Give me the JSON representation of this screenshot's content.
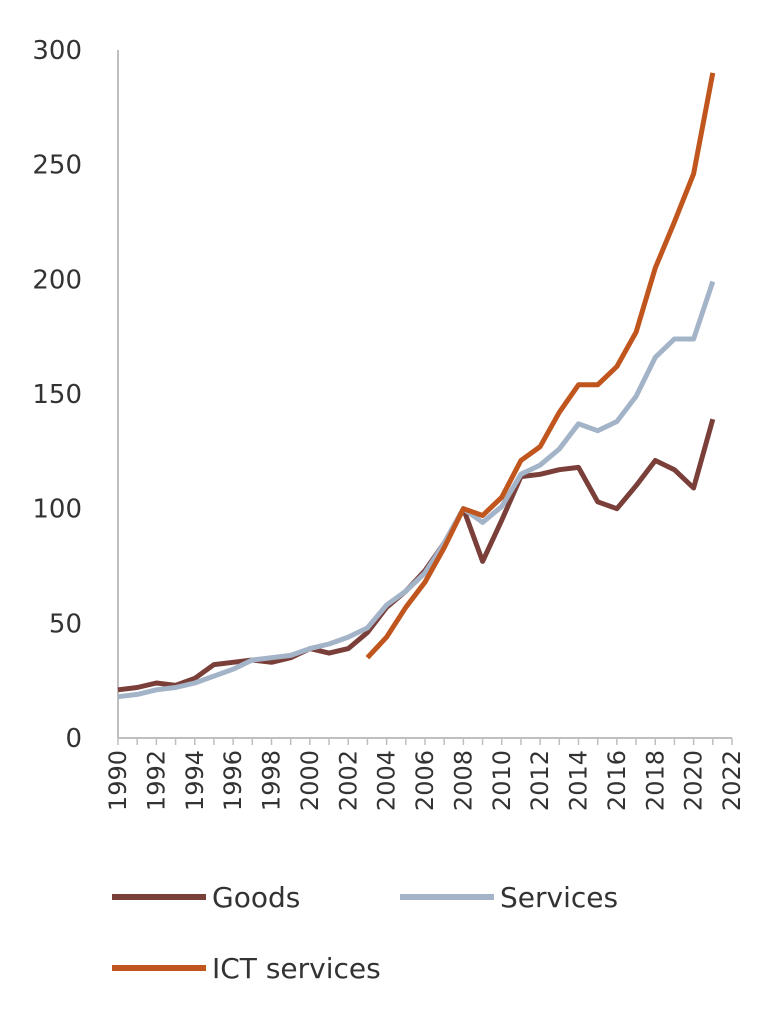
{
  "chart_data": {
    "type": "line",
    "title": "",
    "xlabel": "",
    "ylabel": "",
    "ylim": [
      0,
      300
    ],
    "y_ticks": [
      0,
      50,
      100,
      150,
      200,
      250,
      300
    ],
    "xlim": [
      1990,
      2022
    ],
    "x_ticks": [
      1990,
      1992,
      1994,
      1996,
      1998,
      2000,
      2002,
      2004,
      2006,
      2008,
      2010,
      2012,
      2014,
      2016,
      2018,
      2020,
      2022
    ],
    "grid": false,
    "legend_position": "bottom",
    "series": [
      {
        "name": "Goods",
        "color": "#7b3f3a",
        "x": [
          1990,
          1991,
          1992,
          1993,
          1994,
          1995,
          1996,
          1997,
          1998,
          1999,
          2000,
          2001,
          2002,
          2003,
          2004,
          2005,
          2006,
          2007,
          2008,
          2009,
          2010,
          2011,
          2012,
          2013,
          2014,
          2015,
          2016,
          2017,
          2018,
          2019,
          2020,
          2021
        ],
        "y": [
          21,
          22,
          24,
          23,
          26,
          32,
          33,
          34,
          33,
          35,
          39,
          37,
          39,
          46,
          57,
          64,
          73,
          85,
          100,
          77,
          95,
          114,
          115,
          117,
          118,
          103,
          100,
          110,
          121,
          117,
          109,
          139
        ]
      },
      {
        "name": "Services",
        "color": "#a4b4c8",
        "x": [
          1990,
          1991,
          1992,
          1993,
          1994,
          1995,
          1996,
          1997,
          1998,
          1999,
          2000,
          2001,
          2002,
          2003,
          2004,
          2005,
          2006,
          2007,
          2008,
          2009,
          2010,
          2011,
          2012,
          2013,
          2014,
          2015,
          2016,
          2017,
          2018,
          2019,
          2020,
          2021
        ],
        "y": [
          18,
          19,
          21,
          22,
          24,
          27,
          30,
          34,
          35,
          36,
          39,
          41,
          44,
          48,
          58,
          64,
          72,
          85,
          100,
          94,
          101,
          115,
          119,
          126,
          137,
          134,
          138,
          149,
          166,
          174,
          174,
          199
        ]
      },
      {
        "name": "ICT services",
        "color": "#c0561e",
        "x": [
          2003,
          2004,
          2005,
          2006,
          2007,
          2008,
          2009,
          2010,
          2011,
          2012,
          2013,
          2014,
          2015,
          2016,
          2017,
          2018,
          2019,
          2020,
          2021
        ],
        "y": [
          35,
          44,
          57,
          68,
          83,
          100,
          97,
          105,
          121,
          127,
          142,
          154,
          154,
          162,
          177,
          205,
          225,
          246,
          290
        ]
      }
    ]
  }
}
